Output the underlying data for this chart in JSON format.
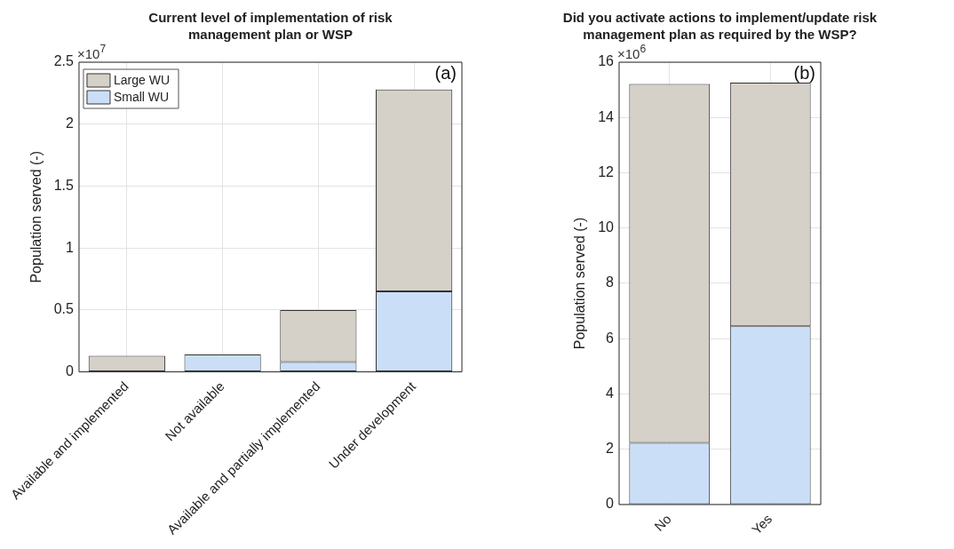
{
  "chart_data": [
    {
      "type": "bar",
      "title": "Current level of implementation of risk management plan or WSP",
      "ylabel": "Population served (-)",
      "categories": [
        "Available and implemented",
        "Not available",
        "Available and partially implemented",
        "Under development"
      ],
      "series": [
        {
          "name": "Small WU",
          "color": "#cadff7",
          "values": [
            0,
            0.14,
            0.08,
            0.65
          ]
        },
        {
          "name": "Large WU",
          "color": "#d5d0c8",
          "values": [
            0.13,
            0,
            0.42,
            1.63
          ]
        }
      ],
      "stacked": true,
      "ylim": [
        0,
        2.5
      ],
      "yticks": [
        0,
        0.5,
        1,
        1.5,
        2,
        2.5
      ],
      "grid": true,
      "legend": "top left",
      "annotations": [
        "(a)",
        "×10$^{7}$"
      ]
    },
    {
      "type": "bar",
      "title": "Did you activate actions to implement/update risk management plan as required by the WSP?",
      "ylabel": "Population served (-)",
      "categories": [
        "No",
        "Yes"
      ],
      "series": [
        {
          "color": "#cadff7",
          "values": [
            2.23,
            6.45
          ]
        },
        {
          "color": "#d5d0c8",
          "values": [
            12.98,
            8.81
          ]
        }
      ],
      "stacked": true,
      "ylim": [
        0,
        16
      ],
      "yticks": [
        0,
        2,
        4,
        6,
        8,
        10,
        12,
        14,
        16
      ],
      "grid": true,
      "legend": false,
      "annotations": [
        "(b)",
        "×10$^{6}$"
      ]
    }
  ]
}
